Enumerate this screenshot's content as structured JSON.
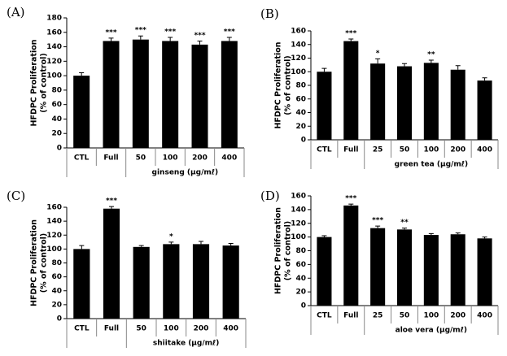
{
  "chart_data": [
    {
      "type": "bar",
      "title": "(A)",
      "ylabel": [
        "HFDPC Proliferation",
        "(% of control)"
      ],
      "categories": [
        "CTL",
        "Full",
        "50",
        "100",
        "200",
        "400"
      ],
      "group_label": "ginseng (μg/mℓ)",
      "values": [
        100,
        148,
        150,
        148,
        143,
        148
      ],
      "errors": [
        4,
        4,
        5,
        5,
        5,
        5
      ],
      "annotations": [
        null,
        "***",
        "***",
        "***",
        "***",
        "***"
      ],
      "color": "#000000",
      "ylim": [
        0,
        180
      ],
      "yticks": [
        0,
        20,
        40,
        60,
        80,
        100,
        120,
        140,
        160,
        180
      ]
    },
    {
      "type": "bar",
      "title": "(B)",
      "ylabel": [
        "HFDPC Proliferation",
        "(% of control)"
      ],
      "categories": [
        "CTL",
        "Full",
        "25",
        "50",
        "100",
        "200",
        "400"
      ],
      "group_label": "green tea (μg/mℓ)",
      "values": [
        100,
        145,
        112,
        108,
        113,
        103,
        87
      ],
      "errors": [
        5,
        3,
        7,
        4,
        4,
        6,
        4
      ],
      "annotations": [
        null,
        "***",
        "*",
        null,
        "**",
        null,
        null
      ],
      "color": "#000000",
      "ylim": [
        0,
        160
      ],
      "yticks": [
        0,
        20,
        40,
        60,
        80,
        100,
        120,
        140,
        160
      ]
    },
    {
      "type": "bar",
      "title": "(C)",
      "ylabel": [
        "HFDPC Proliferation",
        "(% of control)"
      ],
      "categories": [
        "CTL",
        "Full",
        "50",
        "100",
        "200",
        "400"
      ],
      "group_label": "shiitake (μg/mℓ)",
      "values": [
        100,
        158,
        103,
        107,
        107,
        105
      ],
      "errors": [
        5,
        3,
        2,
        3,
        4,
        3
      ],
      "annotations": [
        null,
        "***",
        null,
        "*",
        null,
        null
      ],
      "color": "#000000",
      "ylim": [
        0,
        160
      ],
      "yticks": [
        0,
        20,
        40,
        60,
        80,
        100,
        120,
        140,
        160
      ]
    },
    {
      "type": "bar",
      "title": "(D)",
      "ylabel": [
        "HFDPC Proliferation",
        "(% of control)"
      ],
      "categories": [
        "CTL",
        "Full",
        "25",
        "50",
        "100",
        "200",
        "400"
      ],
      "group_label": "aloe vera (μg/mℓ)",
      "values": [
        100,
        146,
        113,
        111,
        103,
        104,
        98
      ],
      "errors": [
        2,
        2,
        3,
        2,
        2,
        2,
        2
      ],
      "annotations": [
        null,
        "***",
        "***",
        "**",
        null,
        null,
        null
      ],
      "color": "#000000",
      "ylim": [
        0,
        160
      ],
      "yticks": [
        0,
        20,
        40,
        60,
        80,
        100,
        120,
        140,
        160
      ]
    }
  ]
}
